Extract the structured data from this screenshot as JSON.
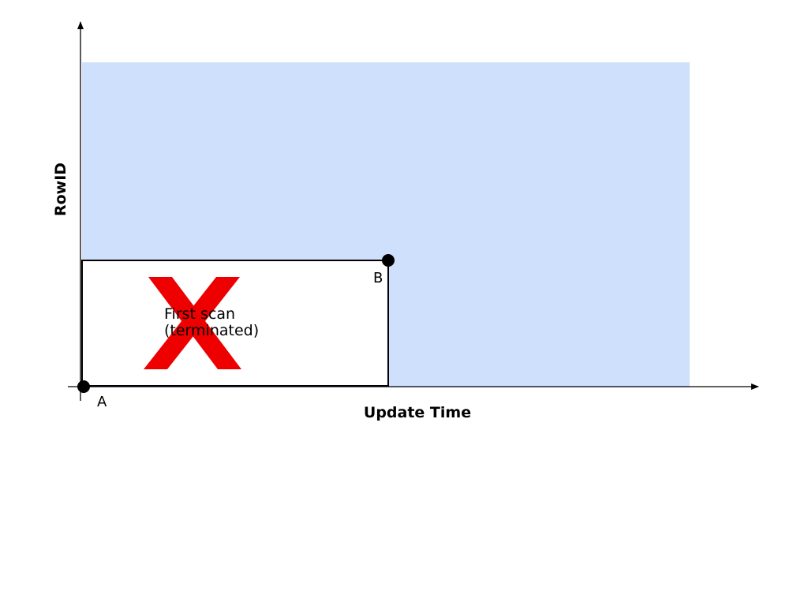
{
  "axes": {
    "x_label": "Update Time",
    "y_label": "RowID"
  },
  "points": [
    {
      "name": "A",
      "label": "A"
    },
    {
      "name": "B",
      "label": "B"
    }
  ],
  "first_scan": {
    "line1": "First scan",
    "line2": "(terminated)",
    "status": "terminated",
    "mark_icon": "x-mark-icon"
  },
  "colors": {
    "remaining_region": "#cfe0fc",
    "scanned_region": "#ffffff",
    "terminated_mark": "#ee0000",
    "axis": "#000000"
  }
}
